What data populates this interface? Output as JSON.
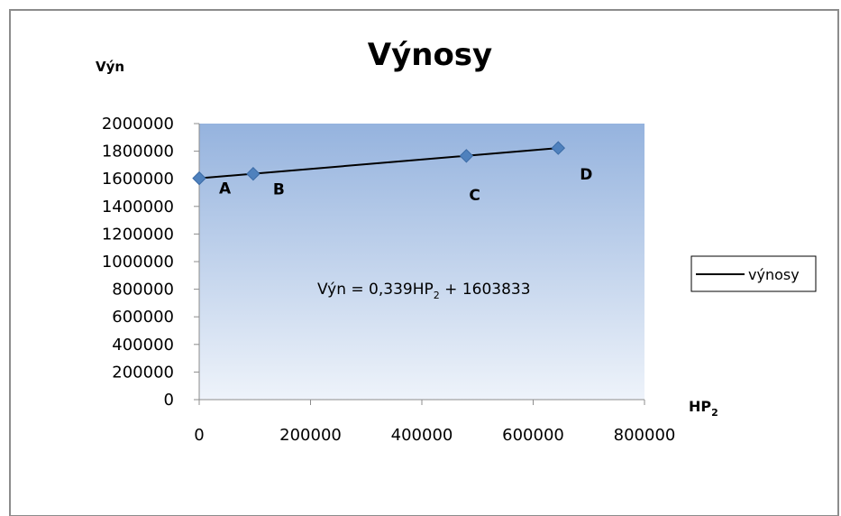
{
  "chart_data": {
    "type": "scatter",
    "title": "Výnosy",
    "ylabel": "Výn",
    "xlabel": {
      "main": "HP",
      "sub": "2"
    },
    "xlim": [
      0,
      800000
    ],
    "ylim": [
      0,
      2000000
    ],
    "x_ticks": [
      "0",
      "200000",
      "400000",
      "600000",
      "800000"
    ],
    "y_ticks": [
      "0",
      "200000",
      "400000",
      "600000",
      "800000",
      "1000000",
      "1200000",
      "1400000",
      "1600000",
      "1800000",
      "2000000"
    ],
    "x_tick_values": [
      0,
      200000,
      400000,
      600000,
      800000
    ],
    "y_tick_values": [
      0,
      200000,
      400000,
      600000,
      800000,
      1000000,
      1200000,
      1400000,
      1600000,
      1800000,
      2000000
    ],
    "points": [
      {
        "label": "A",
        "x": 0,
        "y": 1603833
      },
      {
        "label": "B",
        "x": 97000,
        "y": 1636000
      },
      {
        "label": "C",
        "x": 480000,
        "y": 1766000
      },
      {
        "label": "D",
        "x": 645000,
        "y": 1823000
      }
    ],
    "trendline": {
      "name": "výnosy",
      "slope": 0.339,
      "intercept": 1603833,
      "x_range": [
        0,
        645000
      ],
      "equation": {
        "prefix": "Výn = 0,339HP",
        "sub": "2",
        "suffix": " + 1603833"
      }
    },
    "legend": {
      "position": "right",
      "entries": [
        "výnosy"
      ]
    },
    "colors": {
      "marker": "#4f81bd",
      "line": "#000000",
      "plot_top": "#95b3de",
      "plot_bottom": "#eef3fa",
      "text": "#000000"
    },
    "grid": false
  }
}
